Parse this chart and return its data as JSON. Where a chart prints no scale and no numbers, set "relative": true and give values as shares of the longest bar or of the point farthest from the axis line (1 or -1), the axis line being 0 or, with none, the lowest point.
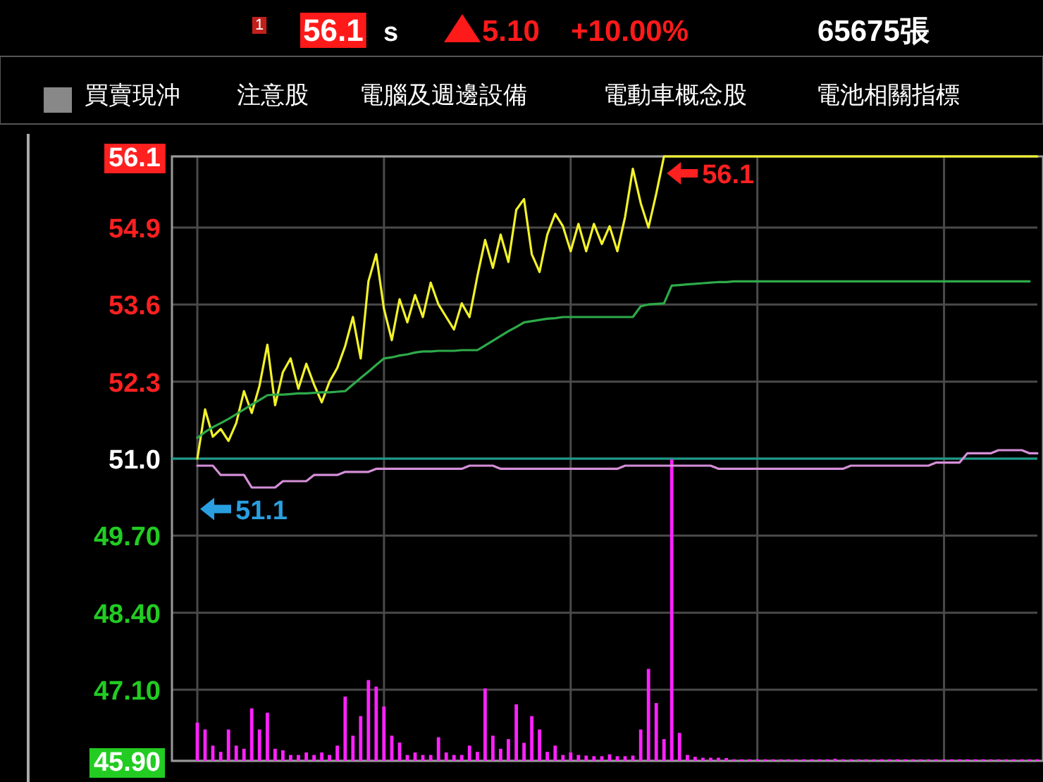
{
  "chart_data": [
    {
      "type": "line",
      "annotations": [
        "1",
        "56.1",
        "s",
        "5.10",
        "+10.00%",
        "65675張",
        "買賣現沖",
        "注意股",
        "電腦及週邊設備",
        "電動車概念股",
        "電池相關指標",
        {
          "text": "56.1",
          "y": 56.1
        },
        {
          "text": "51.1",
          "y": 51.1
        }
      ],
      "categories": [
        null,
        null,
        null,
        null,
        null,
        null,
        null,
        null,
        null,
        null,
        null,
        null,
        null,
        null,
        null,
        null,
        null,
        null,
        null,
        null,
        null,
        null,
        null,
        null,
        null,
        null,
        null,
        null,
        null,
        null,
        null,
        null,
        null,
        null,
        null,
        null,
        null,
        null,
        null,
        null,
        null,
        null,
        null,
        null,
        null,
        null,
        null,
        null,
        null,
        null,
        null,
        null,
        null,
        null,
        null,
        null,
        null,
        null,
        null,
        null,
        null,
        null,
        null,
        null,
        null,
        null,
        null,
        null,
        null,
        null,
        null,
        null,
        null,
        null,
        null,
        null,
        null,
        null,
        null,
        null,
        null,
        null,
        null,
        null,
        null,
        null,
        null,
        null,
        null,
        null,
        null,
        null,
        null,
        null,
        null,
        null,
        null,
        null,
        null,
        null,
        null,
        null,
        null,
        null,
        null,
        null,
        null,
        null,
        null
      ],
      "series": [
        {
          "color": "#f2f22a",
          "values": [
            51.0,
            51.83,
            51.37,
            51.5,
            51.3,
            51.6,
            52.14,
            51.77,
            52.23,
            52.92,
            51.9,
            52.46,
            52.69,
            52.18,
            52.6,
            52.25,
            51.95,
            52.3,
            52.53,
            52.9,
            53.39,
            52.69,
            53.99,
            54.45,
            53.53,
            53.0,
            53.69,
            53.3,
            53.76,
            53.39,
            53.97,
            53.6,
            53.39,
            53.18,
            53.62,
            53.39,
            54.08,
            54.69,
            54.22,
            54.78,
            54.32,
            55.2,
            55.38,
            54.45,
            54.15,
            54.78,
            55.13,
            54.92,
            54.5,
            54.96,
            54.5,
            54.96,
            54.62,
            54.92,
            54.5,
            55.08,
            55.89,
            55.31,
            54.9,
            55.47,
            56.1,
            56.1,
            56.1,
            56.1,
            56.1,
            56.1,
            56.1,
            56.1,
            56.1,
            56.1,
            56.1,
            56.1,
            56.1,
            56.1,
            56.1,
            56.1,
            56.1,
            56.1,
            56.1,
            56.1,
            56.1,
            56.1,
            56.1,
            56.1,
            56.1,
            56.1,
            56.1,
            56.1,
            56.1,
            56.1,
            56.1,
            56.1,
            56.1,
            56.1,
            56.1,
            56.1,
            56.1,
            56.1,
            56.1,
            56.1,
            56.1,
            56.1,
            56.1,
            56.1,
            56.1,
            56.1,
            56.1,
            56.1,
            56.1
          ]
        },
        {
          "color": "#2eaa4a",
          "values": [
            51.35,
            51.45,
            51.53,
            51.6,
            51.67,
            51.75,
            51.83,
            51.91,
            51.99,
            52.07,
            52.08,
            52.08,
            52.09,
            52.1,
            52.1,
            52.11,
            52.12,
            52.12,
            52.13,
            52.14,
            52.25,
            52.36,
            52.47,
            52.58,
            52.69,
            52.71,
            52.74,
            52.76,
            52.79,
            52.81,
            52.81,
            52.82,
            52.82,
            52.82,
            52.83,
            52.83,
            52.83,
            52.91,
            52.99,
            53.07,
            53.15,
            53.22,
            53.3,
            53.32,
            53.34,
            53.36,
            53.37,
            53.39,
            53.39,
            53.39,
            53.39,
            53.39,
            53.39,
            53.39,
            53.39,
            53.39,
            53.39,
            53.57,
            53.6,
            53.61,
            53.62,
            53.92,
            53.93,
            53.94,
            53.95,
            53.96,
            53.97,
            53.98,
            53.98,
            53.99,
            53.99,
            53.99,
            53.99,
            53.99,
            53.99,
            53.99,
            53.99,
            53.99,
            53.99,
            53.99,
            53.99,
            53.99,
            53.99,
            53.99,
            53.99,
            53.99,
            53.99,
            53.99,
            53.99,
            53.99,
            53.99,
            53.99,
            53.99,
            53.99,
            53.99,
            53.99,
            53.99,
            53.99,
            53.99,
            53.99,
            53.99,
            53.99,
            53.99,
            53.99,
            53.99,
            53.99,
            53.99,
            53.99,
            null
          ]
        }
      ],
      "ylim": [
        45.9,
        56.1
      ],
      "yticks": [
        {
          "value": 56.1,
          "label": "56.1"
        },
        {
          "value": 54.9,
          "label": "54.9"
        },
        {
          "value": 53.6,
          "label": "53.6"
        },
        {
          "value": 52.3,
          "label": "52.3"
        },
        {
          "value": 51.0,
          "label": "51.0"
        },
        {
          "value": 49.7,
          "label": "49.70"
        },
        {
          "value": 48.4,
          "label": "48.40"
        },
        {
          "value": 47.1,
          "label": "47.10"
        },
        {
          "value": 45.9,
          "label": "45.90"
        }
      ],
      "grid": true,
      "tick_labels": "y",
      "ref_lines": [
        {
          "axis": "y",
          "value": 51.0,
          "color": "#1a9c8c"
        }
      ]
    },
    {
      "type": "bar",
      "relative": true,
      "categories": [
        null,
        null,
        null,
        null,
        null,
        null,
        null,
        null,
        null,
        null,
        null,
        null,
        null,
        null,
        null,
        null,
        null,
        null,
        null,
        null,
        null,
        null,
        null,
        null,
        null,
        null,
        null,
        null,
        null,
        null,
        null,
        null,
        null,
        null,
        null,
        null,
        null,
        null,
        null,
        null,
        null,
        null,
        null,
        null,
        null,
        null,
        null,
        null,
        null,
        null,
        null,
        null,
        null,
        null,
        null,
        null,
        null,
        null,
        null,
        null,
        null,
        null,
        null,
        null,
        null,
        null,
        null,
        null,
        null,
        null,
        null,
        null,
        null,
        null,
        null,
        null,
        null,
        null,
        null,
        null,
        null,
        null,
        null,
        null,
        null,
        null,
        null,
        null,
        null,
        null,
        null,
        null,
        null,
        null,
        null,
        null,
        null,
        null,
        null,
        null,
        null,
        null,
        null,
        null,
        null,
        null,
        null,
        null,
        null
      ],
      "series": [
        {
          "type": "bar",
          "color": "#ff22ff",
          "values": [
            0.123,
            0.101,
            0.049,
            0.029,
            0.101,
            0.049,
            0.039,
            0.169,
            0.101,
            0.155,
            0.039,
            0.034,
            0.019,
            0.019,
            0.027,
            0.019,
            0.027,
            0.019,
            0.049,
            0.207,
            0.081,
            0.144,
            0.26,
            0.239,
            0.175,
            0.081,
            0.059,
            0.019,
            0.027,
            0.019,
            0.019,
            0.076,
            0.027,
            0.019,
            0.019,
            0.049,
            0.029,
            0.233,
            0.081,
            0.039,
            0.07,
            0.182,
            0.058,
            0.144,
            0.101,
            0.029,
            0.049,
            0.019,
            0.027,
            0.019,
            0.017,
            0.015,
            0.015,
            0.021,
            0.015,
            0.015,
            0.017,
            0.101,
            0.296,
            0.186,
            0.07,
            0.97,
            0.09,
            0.019,
            0.013,
            0.01,
            0.01,
            0.01,
            0.009,
            0.005,
            0.005,
            0.005,
            0.005,
            0.005,
            0.005,
            0.005,
            0.005,
            0.005,
            0.005,
            0.005,
            0.005,
            0.005,
            0.007,
            0.005,
            0.005,
            0.005,
            0.005,
            0.005,
            0.005,
            0.005,
            0.005,
            0.005,
            0.005,
            0.005,
            0.005,
            0.005,
            0.005,
            0.005,
            0.005,
            0.005,
            0.005,
            0.005,
            0.005,
            0.005,
            0.005,
            0.005,
            0.005,
            0.005,
            0.005
          ]
        },
        {
          "type": "line",
          "color": "#d58fd8",
          "values": [
            0.95,
            0.95,
            0.95,
            0.92,
            0.92,
            0.92,
            0.92,
            0.88,
            0.88,
            0.88,
            0.88,
            0.9,
            0.9,
            0.9,
            0.9,
            0.92,
            0.92,
            0.92,
            0.92,
            0.93,
            0.93,
            0.93,
            0.93,
            0.94,
            0.94,
            0.94,
            0.94,
            0.94,
            0.94,
            0.94,
            0.94,
            0.94,
            0.94,
            0.94,
            0.94,
            0.95,
            0.95,
            0.95,
            0.95,
            0.94,
            0.94,
            0.94,
            0.94,
            0.94,
            0.94,
            0.94,
            0.94,
            0.94,
            0.94,
            0.94,
            0.94,
            0.94,
            0.94,
            0.94,
            0.94,
            0.95,
            0.95,
            0.95,
            0.95,
            0.95,
            0.95,
            0.95,
            0.95,
            0.95,
            0.95,
            0.95,
            0.95,
            0.94,
            0.94,
            0.94,
            0.94,
            0.94,
            0.94,
            0.94,
            0.94,
            0.94,
            0.94,
            0.94,
            0.94,
            0.94,
            0.94,
            0.94,
            0.94,
            0.94,
            0.95,
            0.95,
            0.95,
            0.95,
            0.95,
            0.95,
            0.95,
            0.95,
            0.95,
            0.95,
            0.95,
            0.96,
            0.96,
            0.96,
            0.96,
            0.99,
            0.99,
            0.99,
            0.99,
            1,
            1,
            1,
            1,
            0.99,
            0.99
          ]
        }
      ]
    }
  ]
}
